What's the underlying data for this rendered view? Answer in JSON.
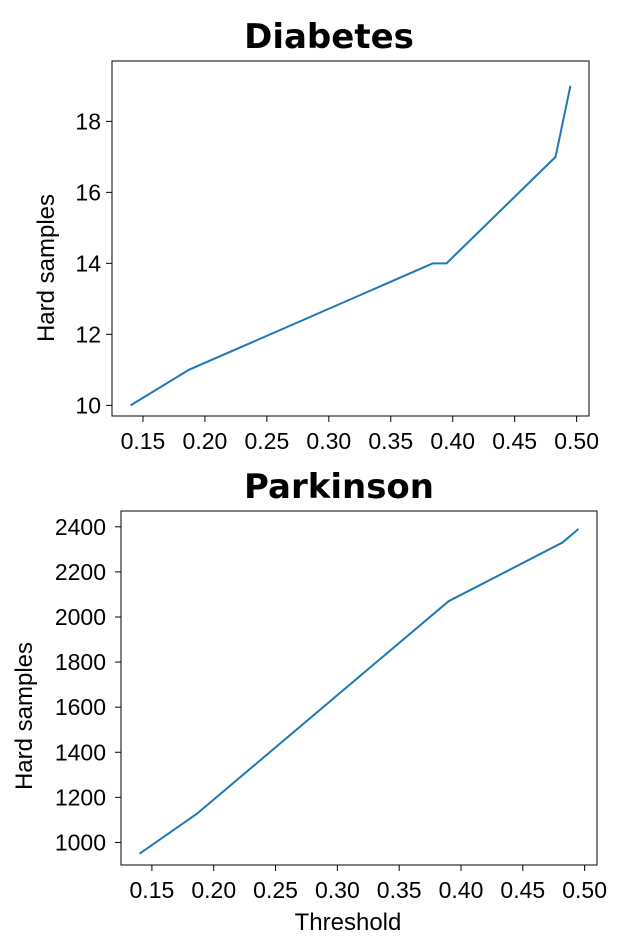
{
  "chart_data": [
    {
      "type": "line",
      "title": "Diabetes",
      "xlabel": "",
      "ylabel": "Hard samples",
      "xlim": [
        0.125,
        0.51
      ],
      "ylim": [
        9.7,
        19.7
      ],
      "x_ticks": [
        "0.15",
        "0.20",
        "0.25",
        "0.30",
        "0.35",
        "0.40",
        "0.45",
        "0.50"
      ],
      "x_tick_values": [
        0.15,
        0.2,
        0.25,
        0.3,
        0.35,
        0.4,
        0.45,
        0.5
      ],
      "y_ticks": [
        "10",
        "12",
        "14",
        "16",
        "18"
      ],
      "y_tick_values": [
        10,
        12,
        14,
        16,
        18
      ],
      "series": [
        {
          "x": [
            0.14,
            0.187,
            0.384,
            0.395,
            0.483,
            0.495
          ],
          "y": [
            10,
            11,
            14,
            14,
            17,
            19
          ]
        }
      ]
    },
    {
      "type": "line",
      "title": "Parkinson",
      "xlabel": "Threshold",
      "ylabel": "Hard samples",
      "xlim": [
        0.125,
        0.51
      ],
      "ylim": [
        900,
        2470
      ],
      "x_ticks": [
        "0.15",
        "0.20",
        "0.25",
        "0.30",
        "0.35",
        "0.40",
        "0.45",
        "0.50"
      ],
      "x_tick_values": [
        0.15,
        0.2,
        0.25,
        0.3,
        0.35,
        0.4,
        0.45,
        0.5
      ],
      "y_ticks": [
        "1000",
        "1200",
        "1400",
        "1600",
        "1800",
        "2000",
        "2200",
        "2400"
      ],
      "y_tick_values": [
        1000,
        1200,
        1400,
        1600,
        1800,
        2000,
        2200,
        2400
      ],
      "series": [
        {
          "x": [
            0.14,
            0.187,
            0.39,
            0.482,
            0.495
          ],
          "y": [
            950,
            1130,
            2070,
            2330,
            2390
          ]
        }
      ]
    }
  ]
}
